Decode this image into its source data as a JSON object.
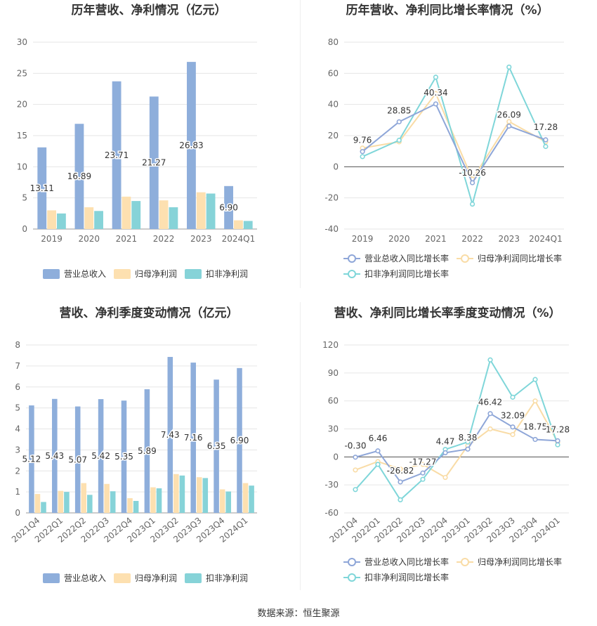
{
  "footer": {
    "source": "数据来源：恒生聚源"
  },
  "colors": {
    "revenue": "#8eaedb",
    "net_profit": "#fde0b0",
    "deducted": "#86d3d8",
    "line_revenue": "#8ea6d8",
    "line_net": "#f9dca6",
    "line_deducted": "#7fd6d9"
  },
  "chart_data": [
    {
      "type": "bar",
      "title": "历年营收、净利情况（亿元）",
      "categories": [
        "2019",
        "2020",
        "2021",
        "2022",
        "2023",
        "2024Q1"
      ],
      "ylim": [
        0,
        30
      ],
      "yticks": [
        0,
        5,
        10,
        15,
        20,
        25,
        30
      ],
      "series": [
        {
          "name": "营业总收入",
          "values": [
            13.11,
            16.89,
            23.71,
            21.27,
            26.83,
            6.9
          ],
          "labels": [
            "13.11",
            "16.89",
            "23.71",
            "21.27",
            "26.83",
            "6.90"
          ]
        },
        {
          "name": "归母净利润",
          "values": [
            3.0,
            3.5,
            5.2,
            4.6,
            5.9,
            1.4
          ]
        },
        {
          "name": "扣非净利润",
          "values": [
            2.5,
            2.9,
            4.5,
            3.5,
            5.7,
            1.3
          ]
        }
      ],
      "legend": "bottom"
    },
    {
      "type": "line",
      "title": "历年营收、净利同比增长率情况（%）",
      "categories": [
        "2019",
        "2020",
        "2021",
        "2022",
        "2023",
        "2024Q1"
      ],
      "ylim": [
        -40,
        80
      ],
      "yticks": [
        -40,
        -20,
        0,
        20,
        40,
        60,
        80
      ],
      "series": [
        {
          "name": "营业总收入同比增长率",
          "values": [
            9.76,
            28.85,
            40.34,
            -10.26,
            26.09,
            17.28
          ],
          "labels": [
            "9.76",
            "28.85",
            "40.34",
            "-10.26",
            "26.09",
            "17.28"
          ]
        },
        {
          "name": "归母净利润同比增长率",
          "values": [
            12,
            16,
            47,
            -8,
            29,
            16
          ]
        },
        {
          "name": "扣非净利润同比增长率",
          "values": [
            6.5,
            17,
            57.5,
            -24,
            64,
            13
          ]
        }
      ],
      "legend": "bottom"
    },
    {
      "type": "bar",
      "title": "营收、净利季度变动情况（亿元）",
      "categories": [
        "2021Q4",
        "2022Q1",
        "2022Q2",
        "2022Q3",
        "2022Q4",
        "2023Q1",
        "2023Q2",
        "2023Q3",
        "2023Q4",
        "2024Q1"
      ],
      "ylim": [
        0,
        8
      ],
      "yticks": [
        0,
        1,
        2,
        3,
        4,
        5,
        6,
        7,
        8
      ],
      "series": [
        {
          "name": "营业总收入",
          "values": [
            5.12,
            5.43,
            5.07,
            5.42,
            5.35,
            5.89,
            7.43,
            7.16,
            6.35,
            6.9
          ],
          "labels": [
            "5.12",
            "5.43",
            "5.07",
            "5.42",
            "5.35",
            "5.89",
            "7.43",
            "7.16",
            "6.35",
            "6.90"
          ]
        },
        {
          "name": "归母净利润",
          "values": [
            0.9,
            1.05,
            1.42,
            1.38,
            0.7,
            1.22,
            1.85,
            1.7,
            1.12,
            1.42
          ]
        },
        {
          "name": "扣非净利润",
          "values": [
            0.52,
            1.0,
            0.86,
            1.03,
            0.57,
            1.17,
            1.78,
            1.66,
            1.02,
            1.3
          ]
        }
      ],
      "legend": "bottom"
    },
    {
      "type": "line",
      "title": "营收、净利同比增长率季度变动情况（%）",
      "categories": [
        "2021Q4",
        "2022Q1",
        "2022Q2",
        "2022Q3",
        "2022Q4",
        "2023Q1",
        "2023Q2",
        "2023Q3",
        "2023Q4",
        "2024Q1"
      ],
      "ylim": [
        -60,
        120
      ],
      "yticks": [
        -60,
        -30,
        0,
        30,
        60,
        90,
        120
      ],
      "series": [
        {
          "name": "营业总收入同比增长率",
          "values": [
            -0.3,
            6.46,
            -26.82,
            -17.27,
            4.47,
            8.38,
            46.42,
            32.09,
            18.75,
            17.28
          ],
          "labels": [
            "-0.30",
            "6.46",
            "-26.82",
            "-17.27",
            "4.47",
            "8.38",
            "46.42",
            "32.09",
            "18.75",
            "17.28"
          ]
        },
        {
          "name": "归母净利润同比增长率",
          "values": [
            -14,
            -5,
            -13,
            -8,
            -22,
            12,
            30,
            24,
            60,
            16
          ]
        },
        {
          "name": "扣非净利润同比增长率",
          "values": [
            -35,
            -8,
            -46,
            -24,
            8,
            16,
            104,
            64,
            83,
            13
          ]
        }
      ],
      "legend": "bottom"
    }
  ]
}
